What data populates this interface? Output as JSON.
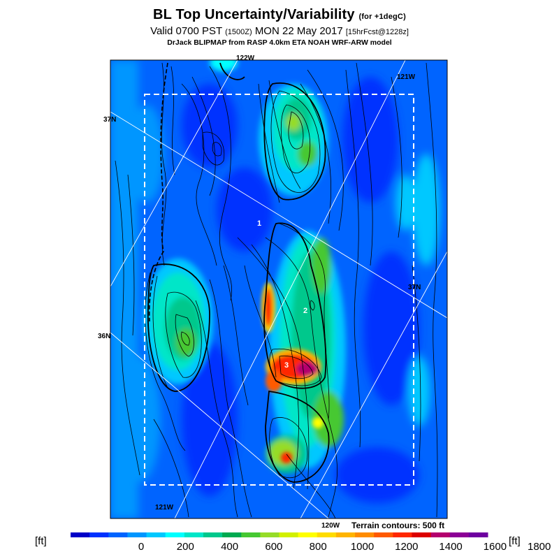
{
  "title": {
    "main": "BL Top Uncertainty/Variability",
    "main_note": "(for +1degC)",
    "valid_prefix": "Valid 0700 PST",
    "valid_utc": "(1500Z)",
    "valid_date": "MON 22 May 2017",
    "valid_fcst": "[15hrFcst@1228z]",
    "credit": "DrJack BLIPMAP from RASP 4.0km ETA NOAH WRF-ARW model"
  },
  "graticule": {
    "lon_labels": [
      "122W",
      "121W",
      "121W",
      "120W"
    ],
    "lat_labels": [
      "37N",
      "37N",
      "36N"
    ]
  },
  "markers": [
    "1",
    "2",
    "3"
  ],
  "terrain_note": "Terrain contours: 500 ft",
  "colorbar": {
    "unit_left": "[ft]",
    "unit_right": "[ft]",
    "ticks": [
      "0",
      "200",
      "400",
      "600",
      "800",
      "1000",
      "1200",
      "1400",
      "1600",
      "1800"
    ],
    "colors": [
      "#0000c8",
      "#0032ff",
      "#0064ff",
      "#0096ff",
      "#00c8ff",
      "#00ffff",
      "#00e6c8",
      "#00c88c",
      "#00aa50",
      "#46c832",
      "#96dc28",
      "#d2f000",
      "#ffff00",
      "#ffdc00",
      "#ffb400",
      "#ff8c00",
      "#ff5a00",
      "#ff2800",
      "#dc0000",
      "#b4006e",
      "#8c0096",
      "#6e00a0"
    ]
  },
  "colors": {
    "low": "#0064ff",
    "mid": "#00ffff",
    "high": "#ff2800"
  }
}
